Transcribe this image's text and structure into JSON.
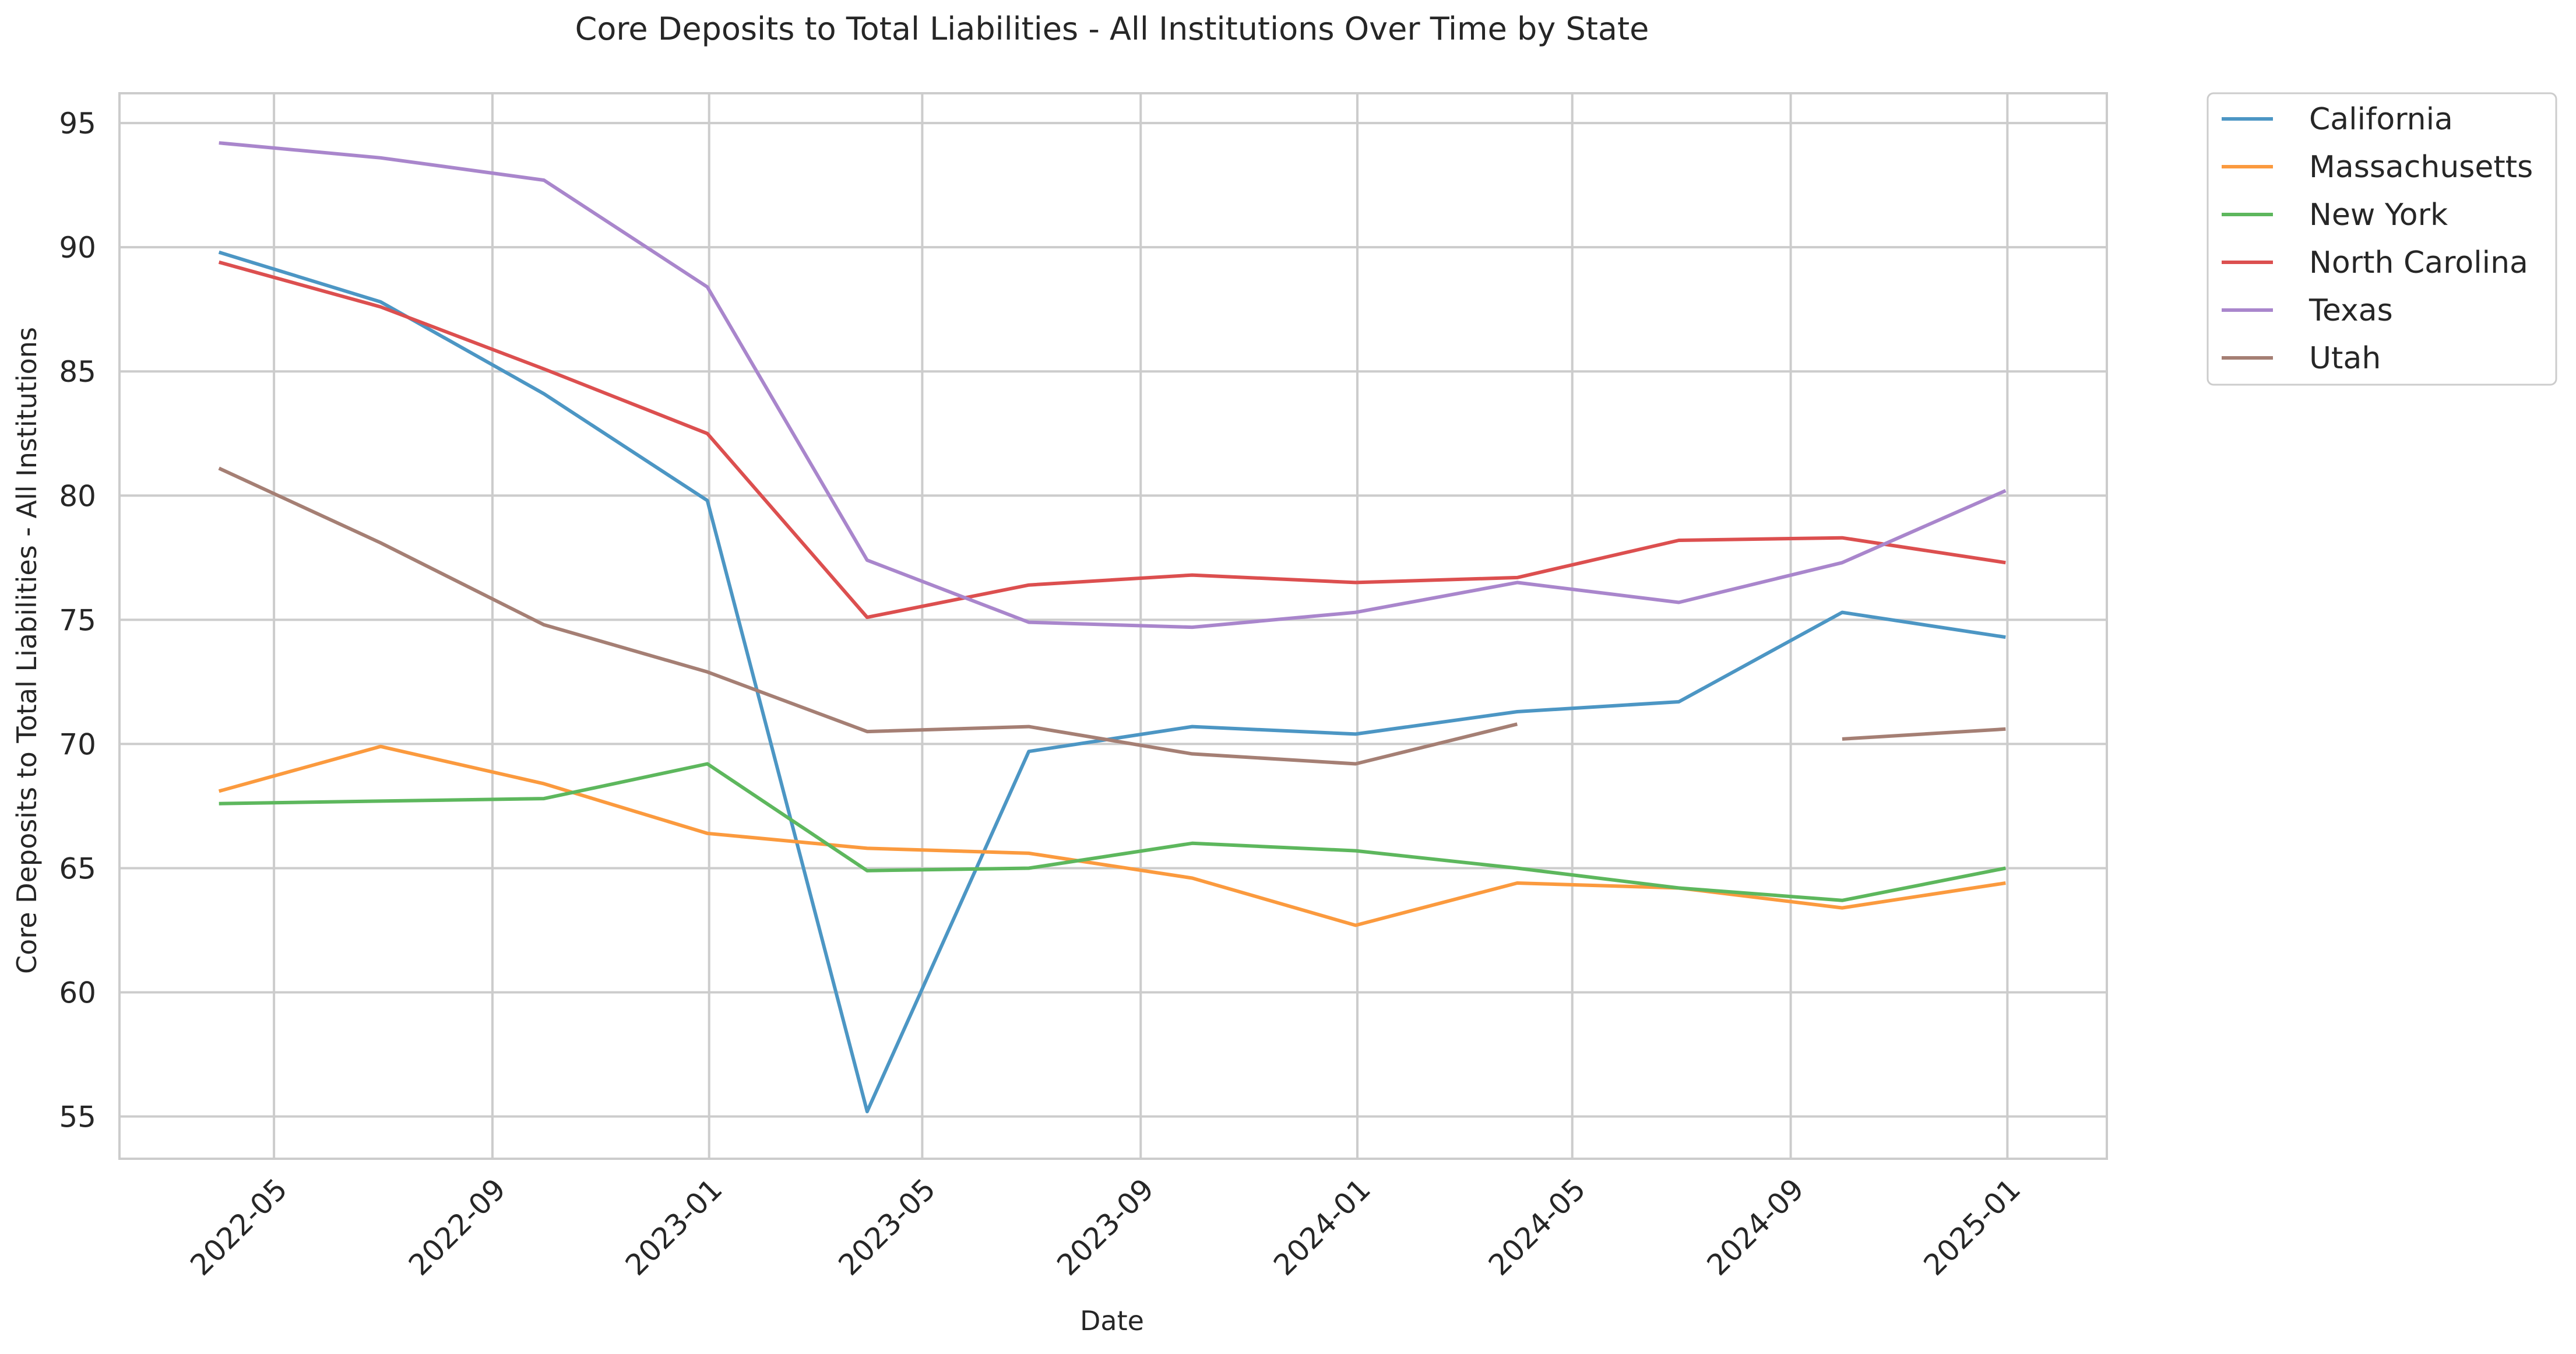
{
  "chart_data": {
    "type": "line",
    "title": "Core Deposits to Total Liabilities - All Institutions Over Time by State",
    "xlabel": "Date",
    "ylabel": "Core Deposits to Total Liabilities - All Institutions",
    "x_dates": [
      "2022-03-31",
      "2022-06-30",
      "2022-09-30",
      "2022-12-31",
      "2023-03-31",
      "2023-06-30",
      "2023-09-30",
      "2023-12-31",
      "2024-03-31",
      "2024-06-30",
      "2024-09-30",
      "2024-12-31"
    ],
    "x_ticks": [
      "2022-05",
      "2022-09",
      "2023-01",
      "2023-05",
      "2023-09",
      "2024-01",
      "2024-05",
      "2024-09",
      "2025-01"
    ],
    "y_ticks": [
      55,
      60,
      65,
      70,
      75,
      80,
      85,
      90,
      95
    ],
    "ylim": [
      53.3,
      96.2
    ],
    "xlim": [
      "2022-02-03",
      "2025-02-26"
    ],
    "grid": true,
    "legend_position": "outside-right-top",
    "series": [
      {
        "name": "California",
        "color": "#4c96c4",
        "values": [
          89.8,
          87.8,
          84.1,
          79.8,
          55.2,
          69.7,
          70.7,
          70.4,
          71.3,
          71.7,
          75.3,
          74.3
        ]
      },
      {
        "name": "Massachusetts",
        "color": "#fb9a3e",
        "values": [
          68.1,
          69.9,
          68.4,
          66.4,
          65.8,
          65.6,
          64.6,
          62.7,
          64.4,
          64.2,
          63.4,
          64.4
        ]
      },
      {
        "name": "New York",
        "color": "#5db75d",
        "values": [
          67.6,
          67.7,
          67.8,
          69.2,
          64.9,
          65.0,
          66.0,
          65.7,
          65.0,
          64.2,
          63.7,
          65.0
        ]
      },
      {
        "name": "North Carolina",
        "color": "#dc4f4f",
        "values": [
          89.4,
          87.6,
          85.1,
          82.5,
          75.1,
          76.4,
          76.8,
          76.5,
          76.7,
          78.2,
          78.3,
          77.3
        ]
      },
      {
        "name": "Texas",
        "color": "#a986cc",
        "values": [
          94.2,
          93.6,
          92.7,
          88.4,
          77.4,
          74.9,
          74.7,
          75.3,
          76.5,
          75.7,
          77.3,
          80.2
        ]
      },
      {
        "name": "Utah",
        "color": "#a57f74",
        "values": [
          81.1,
          78.1,
          74.8,
          72.9,
          70.5,
          70.7,
          69.6,
          69.2,
          70.8,
          null,
          70.2,
          70.6
        ]
      }
    ]
  }
}
